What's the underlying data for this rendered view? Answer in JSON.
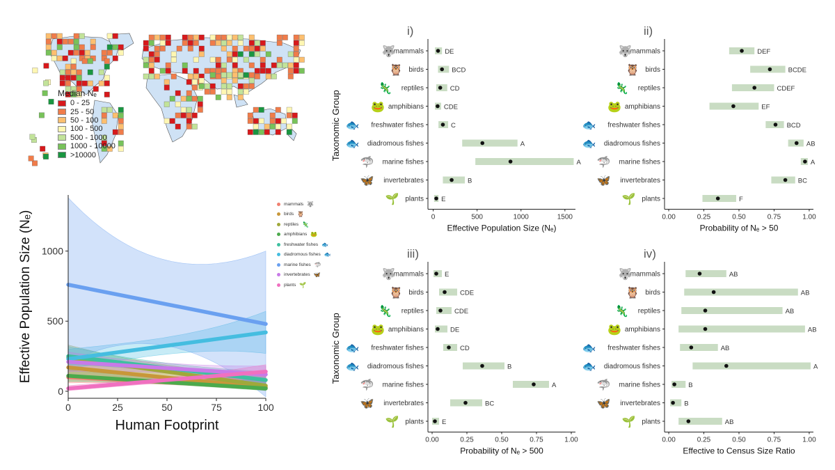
{
  "icons": {
    "mammals": "🐺",
    "birds": "🦉",
    "reptiles": "🦎",
    "amphibians": "🐸",
    "freshwater fishes": "🐟",
    "diadromous fishes": "🐟",
    "marine fishes": "🦈",
    "invertebrates": "🦋",
    "plants": "🌱"
  },
  "map": {
    "legend_title": "Median Nₑ",
    "bins": [
      {
        "label": "0 - 25",
        "color": "#d7191c"
      },
      {
        "label": "25 - 50",
        "color": "#f07c4a"
      },
      {
        "label": "50 - 100",
        "color": "#fdbf6f"
      },
      {
        "label": "100 - 500",
        "color": "#fff7b3"
      },
      {
        "label": "500 - 1000",
        "color": "#c2e39a"
      },
      {
        "label": "1000 - 10000",
        "color": "#78c25a"
      },
      {
        "label": ">10000",
        "color": "#1a9641"
      }
    ]
  },
  "chart_data": [
    {
      "id": "ne_vs_footprint",
      "type": "line",
      "title": "",
      "xlabel": "Human Footprint",
      "ylabel": "Effective Population Size (Nₑ)",
      "xlim": [
        0,
        100
      ],
      "ylim": [
        -50,
        1400
      ],
      "xticks": [
        0,
        25,
        50,
        75,
        100
      ],
      "yticks": [
        0,
        500,
        1000
      ],
      "x": [
        0,
        100
      ],
      "series": [
        {
          "name": "mammals",
          "color": "#f08070",
          "values": [
            100,
            30
          ],
          "lower": [
            60,
            10
          ],
          "upper": [
            150,
            120
          ]
        },
        {
          "name": "birds",
          "color": "#c8973a",
          "values": [
            170,
            25
          ],
          "lower": [
            100,
            5
          ],
          "upper": [
            240,
            90
          ]
        },
        {
          "name": "reptiles",
          "color": "#a0a83a",
          "values": [
            240,
            40
          ],
          "lower": [
            150,
            10
          ],
          "upper": [
            330,
            120
          ]
        },
        {
          "name": "amphibians",
          "color": "#4caa4c",
          "values": [
            110,
            20
          ],
          "lower": [
            70,
            5
          ],
          "upper": [
            160,
            80
          ]
        },
        {
          "name": "freshwater fishes",
          "color": "#3ec0a0",
          "values": [
            250,
            80
          ],
          "lower": [
            190,
            40
          ],
          "upper": [
            320,
            140
          ]
        },
        {
          "name": "diadromous fishes",
          "color": "#45bde0",
          "values": [
            230,
            420
          ],
          "lower": [
            160,
            270
          ],
          "upper": [
            300,
            570
          ]
        },
        {
          "name": "marine fishes",
          "color": "#6aa0f0",
          "values": [
            760,
            480
          ],
          "lower": [
            200,
            -40
          ],
          "upper": [
            1380,
            1000
          ]
        },
        {
          "name": "invertebrates",
          "color": "#c87ae8",
          "values": [
            210,
            120
          ],
          "lower": [
            140,
            60
          ],
          "upper": [
            280,
            180
          ]
        },
        {
          "name": "plants",
          "color": "#f070c0",
          "values": [
            20,
            140
          ],
          "lower": [
            5,
            90
          ],
          "upper": [
            40,
            190
          ]
        }
      ]
    },
    {
      "id": "panel_i",
      "panel": "i)",
      "type": "range",
      "xlabel": "Effective Population Size (Nₑ)",
      "ylabel": "Taxonomic Group",
      "xlim": [
        -60,
        1620
      ],
      "xticks": [
        "0",
        "500",
        "1000",
        "1500"
      ],
      "xtick_values": [
        0,
        500,
        1000,
        1500
      ],
      "categories": [
        "mammals",
        "birds",
        "reptiles",
        "amphibians",
        "freshwater fishes",
        "diadromous fishes",
        "marine fishes",
        "invertebrates",
        "plants"
      ],
      "estimate": [
        55,
        100,
        80,
        50,
        110,
        560,
        880,
        210,
        35
      ],
      "low": [
        20,
        55,
        35,
        20,
        60,
        330,
        480,
        110,
        10
      ],
      "high": [
        100,
        180,
        160,
        90,
        170,
        960,
        1600,
        360,
        60
      ],
      "letters": [
        "DE",
        "BCD",
        "CD",
        "CDE",
        "C",
        "A",
        "A",
        "B",
        "E"
      ]
    },
    {
      "id": "panel_ii",
      "panel": "ii)",
      "type": "range",
      "xlabel": "Probability of Nₑ > 50",
      "xlim": [
        -0.03,
        1.03
      ],
      "xticks": [
        "0.00",
        "0.25",
        "0.50",
        "0.75",
        "1.00"
      ],
      "xtick_values": [
        0,
        0.25,
        0.5,
        0.75,
        1
      ],
      "categories": [
        "mammals",
        "birds",
        "reptiles",
        "amphibians",
        "freshwater fishes",
        "diadromous fishes",
        "marine fishes",
        "invertebrates",
        "plants"
      ],
      "estimate": [
        0.52,
        0.72,
        0.61,
        0.46,
        0.76,
        0.91,
        0.97,
        0.83,
        0.35
      ],
      "low": [
        0.43,
        0.58,
        0.45,
        0.29,
        0.69,
        0.85,
        0.94,
        0.73,
        0.24
      ],
      "high": [
        0.61,
        0.83,
        0.75,
        0.64,
        0.82,
        0.96,
        0.99,
        0.9,
        0.48
      ],
      "letters": [
        "DEF",
        "BCDE",
        "CDEF",
        "EF",
        "BCD",
        "AB",
        "A",
        "BC",
        "F"
      ]
    },
    {
      "id": "panel_iii",
      "panel": "iii)",
      "type": "range",
      "xlabel": "Probability of Nₑ > 500",
      "ylabel": "Taxonomic Group",
      "xlim": [
        -0.03,
        1.03
      ],
      "xticks": [
        "0.00",
        "0.25",
        "0.50",
        "0.75",
        "1.00"
      ],
      "xtick_values": [
        0,
        0.25,
        0.5,
        0.75,
        1
      ],
      "categories": [
        "mammals",
        "birds",
        "reptiles",
        "amphibians",
        "freshwater fishes",
        "diadromous fishes",
        "marine fishes",
        "invertebrates",
        "plants"
      ],
      "estimate": [
        0.03,
        0.09,
        0.06,
        0.04,
        0.12,
        0.36,
        0.73,
        0.24,
        0.02
      ],
      "low": [
        0.01,
        0.05,
        0.03,
        0.02,
        0.08,
        0.22,
        0.58,
        0.13,
        0.0
      ],
      "high": [
        0.07,
        0.18,
        0.14,
        0.11,
        0.18,
        0.52,
        0.84,
        0.36,
        0.05
      ],
      "letters": [
        "E",
        "CDE",
        "CDE",
        "DE",
        "CD",
        "B",
        "A",
        "BC",
        "E"
      ]
    },
    {
      "id": "panel_iv",
      "panel": "iv)",
      "type": "range",
      "xlabel": "Effective to Census Size Ratio",
      "xlim": [
        -0.03,
        1.03
      ],
      "xticks": [
        "0.00",
        "0.25",
        "0.50",
        "0.75",
        "1.00"
      ],
      "xtick_values": [
        0,
        0.25,
        0.5,
        0.75,
        1
      ],
      "categories": [
        "mammals",
        "birds",
        "reptiles",
        "amphibians",
        "freshwater fishes",
        "diadromous fishes",
        "marine fishes",
        "invertebrates",
        "plants"
      ],
      "estimate": [
        0.22,
        0.32,
        0.26,
        0.26,
        0.16,
        0.41,
        0.04,
        0.03,
        0.14
      ],
      "low": [
        0.12,
        0.11,
        0.09,
        0.07,
        0.08,
        0.17,
        0.02,
        0.01,
        0.07
      ],
      "high": [
        0.41,
        0.92,
        0.81,
        0.97,
        0.35,
        1.01,
        0.12,
        0.09,
        0.38
      ],
      "letters": [
        "AB",
        "AB",
        "AB",
        "AB",
        "AB",
        "A",
        "B",
        "B",
        "AB"
      ]
    }
  ]
}
